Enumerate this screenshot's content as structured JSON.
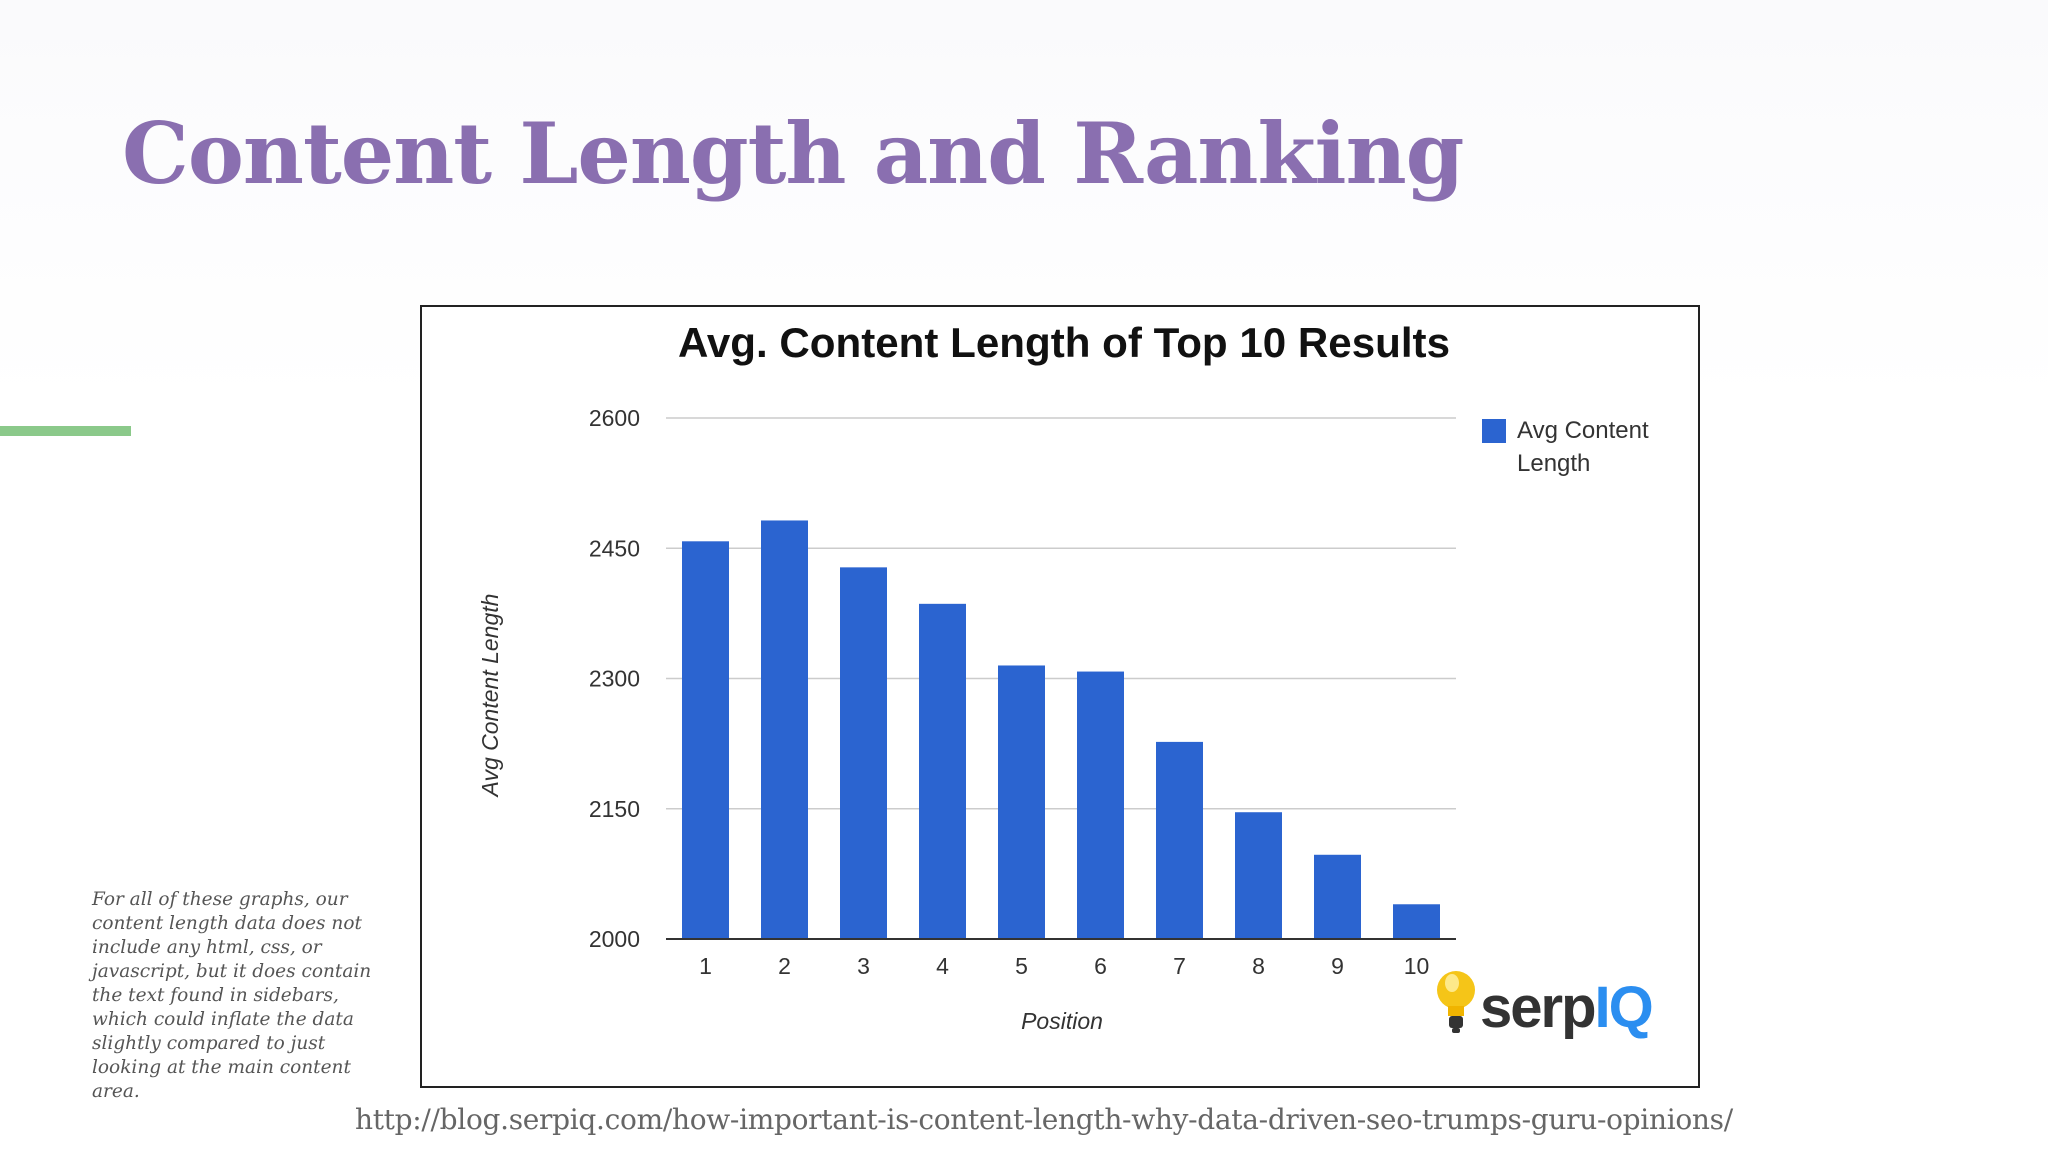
{
  "slide": {
    "title": "Content Length and Ranking",
    "side_note": "For all of these graphs, our content length data does not include any html, css, or javascript, but it does contain the text found in sidebars, which could inflate the data slightly compared to just looking at the main content area.",
    "source_url": "http://blog.serpiq.com/how-important-is-content-length-why-data-driven-seo-trumps-guru-opinions/",
    "logo_text_serp": "serp",
    "logo_text_iq": "IQ"
  },
  "colors": {
    "title": "#8a6fb0",
    "accent_bar": "#8bc98a",
    "bar": "#2b64d0",
    "logo_dark": "#333333",
    "logo_blue": "#2b8ef0"
  },
  "chart_data": {
    "type": "bar",
    "title": "Avg. Content Length of Top 10 Results",
    "xlabel": "Position",
    "ylabel": "Avg Content Length",
    "categories": [
      "1",
      "2",
      "3",
      "4",
      "5",
      "6",
      "7",
      "8",
      "9",
      "10"
    ],
    "series": [
      {
        "name": "Avg Content Length",
        "values": [
          2458,
          2482,
          2428,
          2386,
          2315,
          2308,
          2227,
          2146,
          2097,
          2040
        ]
      }
    ],
    "ylim": [
      2000,
      2600
    ],
    "yticks": [
      "2000",
      "2150",
      "2300",
      "2450",
      "2600"
    ],
    "grid": true,
    "legend_position": "right"
  }
}
